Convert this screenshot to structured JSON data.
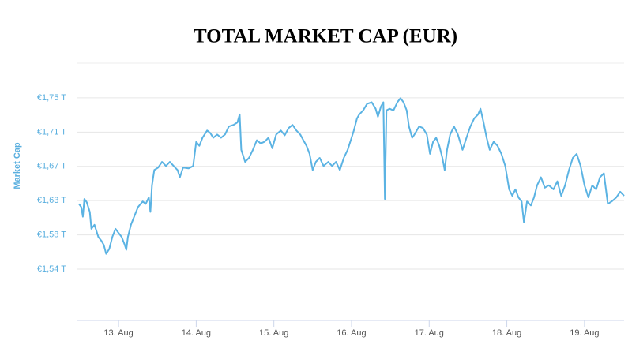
{
  "chart_data": {
    "type": "line",
    "title": "TOTAL MARKET CAP (EUR)",
    "y_label": "Market Cap",
    "color": "#5bb3e3",
    "grid": true,
    "xlim": [
      12.47,
      19.51
    ],
    "xticks": [
      {
        "value": 13,
        "label": "13. Aug"
      },
      {
        "value": 14,
        "label": "14. Aug"
      },
      {
        "value": 15,
        "label": "15. Aug"
      },
      {
        "value": 16,
        "label": "16. Aug"
      },
      {
        "value": 17,
        "label": "17. Aug"
      },
      {
        "value": 18,
        "label": "18. Aug"
      },
      {
        "value": 19,
        "label": "19. Aug"
      }
    ],
    "ylim": [
      1.4774,
      1.7965
    ],
    "yticks": [
      {
        "value": 1.541,
        "label": "€1,54 T"
      },
      {
        "value": 1.5835,
        "label": "€1,58 T"
      },
      {
        "value": 1.626,
        "label": "€1,63 T"
      },
      {
        "value": 1.6685,
        "label": "€1,67 T"
      },
      {
        "value": 1.711,
        "label": "€1,71 T"
      },
      {
        "value": 1.7535,
        "label": "€1,75 T"
      }
    ],
    "x": [
      12.49,
      12.52,
      12.54,
      12.56,
      12.59,
      12.63,
      12.65,
      12.69,
      12.74,
      12.78,
      12.81,
      12.84,
      12.88,
      12.92,
      12.96,
      13.0,
      13.04,
      13.08,
      13.1,
      13.12,
      13.16,
      13.2,
      13.25,
      13.31,
      13.35,
      13.39,
      13.41,
      13.43,
      13.46,
      13.51,
      13.56,
      13.61,
      13.66,
      13.71,
      13.76,
      13.79,
      13.83,
      13.9,
      13.96,
      14.0,
      14.04,
      14.08,
      14.14,
      14.18,
      14.22,
      14.27,
      14.32,
      14.37,
      14.42,
      14.48,
      14.53,
      14.56,
      14.58,
      14.63,
      14.68,
      14.73,
      14.78,
      14.83,
      14.88,
      14.93,
      14.98,
      15.03,
      15.09,
      15.14,
      15.19,
      15.24,
      15.29,
      15.34,
      15.38,
      15.42,
      15.46,
      15.5,
      15.54,
      15.59,
      15.64,
      15.7,
      15.75,
      15.8,
      15.85,
      15.9,
      15.95,
      16.0,
      16.03,
      16.07,
      16.1,
      16.15,
      16.2,
      16.26,
      16.31,
      16.34,
      16.38,
      16.41,
      16.43,
      16.45,
      16.49,
      16.54,
      16.59,
      16.63,
      16.67,
      16.71,
      16.74,
      16.78,
      16.81,
      16.87,
      16.92,
      16.97,
      17.01,
      17.05,
      17.09,
      17.13,
      17.17,
      17.2,
      17.23,
      17.27,
      17.32,
      17.37,
      17.43,
      17.48,
      17.53,
      17.58,
      17.63,
      17.66,
      17.7,
      17.74,
      17.78,
      17.83,
      17.88,
      17.93,
      17.98,
      18.03,
      18.07,
      18.11,
      18.15,
      18.19,
      18.22,
      18.26,
      18.31,
      18.35,
      18.39,
      18.44,
      18.49,
      18.54,
      18.6,
      18.65,
      18.7,
      18.75,
      18.8,
      18.85,
      18.9,
      18.95,
      19.0,
      19.05,
      19.1,
      19.15,
      19.2,
      19.25,
      19.3,
      19.35,
      19.41,
      19.46,
      19.51
    ],
    "values": [
      1.622,
      1.618,
      1.606,
      1.628,
      1.624,
      1.612,
      1.591,
      1.596,
      1.581,
      1.576,
      1.571,
      1.56,
      1.566,
      1.581,
      1.591,
      1.586,
      1.581,
      1.571,
      1.565,
      1.581,
      1.596,
      1.606,
      1.618,
      1.625,
      1.622,
      1.63,
      1.612,
      1.645,
      1.664,
      1.667,
      1.674,
      1.669,
      1.674,
      1.669,
      1.664,
      1.655,
      1.667,
      1.666,
      1.669,
      1.699,
      1.694,
      1.704,
      1.713,
      1.71,
      1.704,
      1.708,
      1.704,
      1.708,
      1.718,
      1.72,
      1.723,
      1.733,
      1.689,
      1.674,
      1.679,
      1.689,
      1.701,
      1.697,
      1.699,
      1.704,
      1.691,
      1.708,
      1.713,
      1.707,
      1.716,
      1.72,
      1.713,
      1.708,
      1.701,
      1.694,
      1.684,
      1.664,
      1.674,
      1.679,
      1.669,
      1.674,
      1.669,
      1.674,
      1.664,
      1.679,
      1.689,
      1.704,
      1.713,
      1.728,
      1.733,
      1.738,
      1.746,
      1.748,
      1.74,
      1.73,
      1.743,
      1.748,
      1.628,
      1.738,
      1.74,
      1.738,
      1.748,
      1.753,
      1.748,
      1.738,
      1.718,
      1.704,
      1.708,
      1.718,
      1.716,
      1.708,
      1.684,
      1.699,
      1.704,
      1.694,
      1.679,
      1.664,
      1.689,
      1.708,
      1.718,
      1.708,
      1.689,
      1.704,
      1.718,
      1.728,
      1.733,
      1.74,
      1.723,
      1.704,
      1.689,
      1.699,
      1.694,
      1.684,
      1.669,
      1.64,
      1.632,
      1.64,
      1.63,
      1.625,
      1.599,
      1.625,
      1.62,
      1.63,
      1.645,
      1.655,
      1.642,
      1.645,
      1.64,
      1.65,
      1.632,
      1.645,
      1.664,
      1.679,
      1.684,
      1.669,
      1.645,
      1.63,
      1.645,
      1.64,
      1.655,
      1.66,
      1.622,
      1.625,
      1.63,
      1.637,
      1.632
    ]
  }
}
